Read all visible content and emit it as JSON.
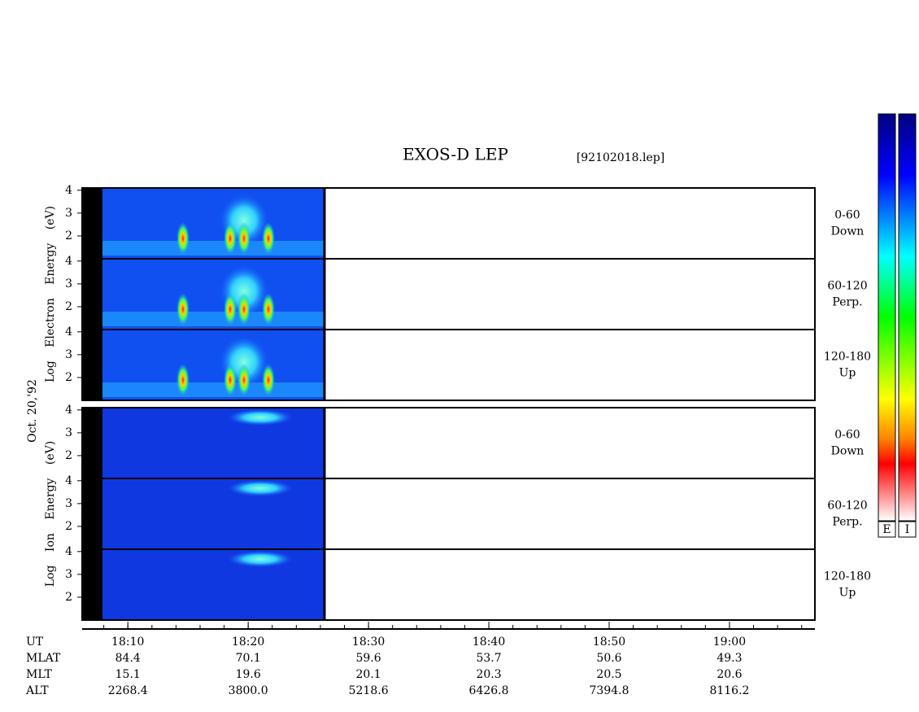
{
  "title": "EXOS-D LEP",
  "file": "[92102018.lep]",
  "date": "Oct. 20,'92",
  "groups": [
    {
      "label": "Log Electron Energy (eV)"
    },
    {
      "label": "Log Ion Energy (eV)"
    }
  ],
  "pitch_labels": [
    [
      "0-60",
      "Down"
    ],
    [
      "60-120",
      "Perp."
    ],
    [
      "120-180",
      "Up"
    ]
  ],
  "ylim": [
    1,
    4.1
  ],
  "yticks": [
    2,
    3,
    4
  ],
  "xlim": [
    6.2,
    67.1
  ],
  "xticks": [
    {
      "value": 10,
      "label": "18:10"
    },
    {
      "value": 20,
      "label": "18:20"
    },
    {
      "value": 30,
      "label": "18:30"
    },
    {
      "value": 40,
      "label": "18:40"
    },
    {
      "value": 50,
      "label": "18:50"
    },
    {
      "value": 60,
      "label": "19:00"
    }
  ],
  "time_label": "UT",
  "rows": [
    {
      "name": "MLAT",
      "values": [
        "84.4",
        "70.1",
        "59.6",
        "53.7",
        "50.6",
        "49.3"
      ]
    },
    {
      "name": "MLT",
      "values": [
        "15.1",
        "19.6",
        "20.1",
        "20.3",
        "20.5",
        "20.6"
      ]
    },
    {
      "name": "ALT",
      "values": [
        "2268.4",
        "3800.0",
        "5218.6",
        "6426.8",
        "7394.8",
        "8116.2"
      ]
    }
  ],
  "colorbars": [
    "E",
    "I"
  ]
}
